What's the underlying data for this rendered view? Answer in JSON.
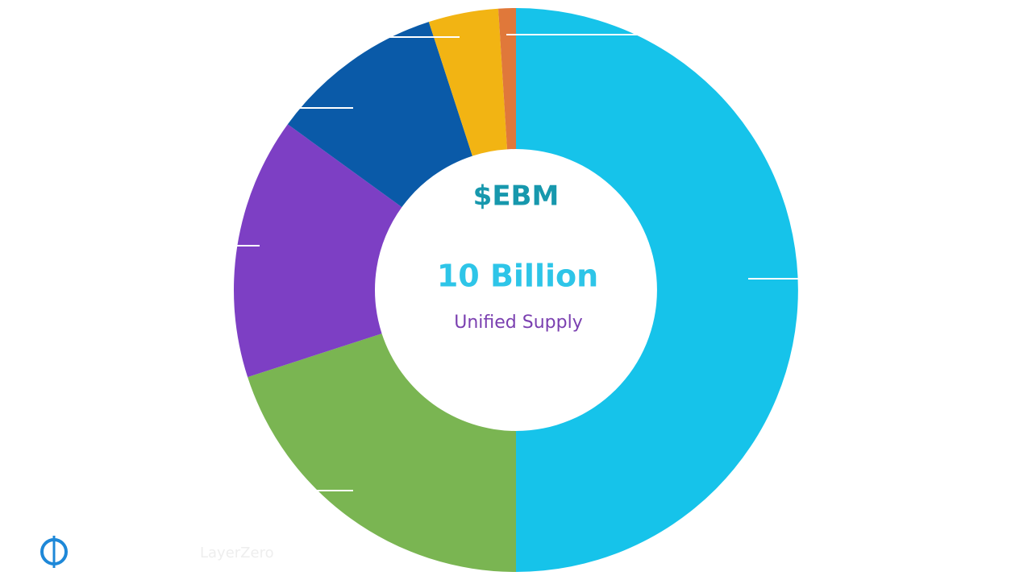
{
  "chart_data": {
    "type": "donut",
    "title": "$EBM",
    "subtitle": "10 Billion",
    "caption": "Unified Supply",
    "categories": [
      null,
      null,
      null,
      null,
      null,
      null
    ],
    "values": [
      50,
      20,
      15,
      10,
      4,
      1
    ],
    "colors": [
      "#16c3ea",
      "#7ab552",
      "#7d3fc4",
      "#0a5aa8",
      "#f2b413",
      "#e0783a"
    ]
  },
  "footer": {
    "logo_text": "LayerZero"
  }
}
